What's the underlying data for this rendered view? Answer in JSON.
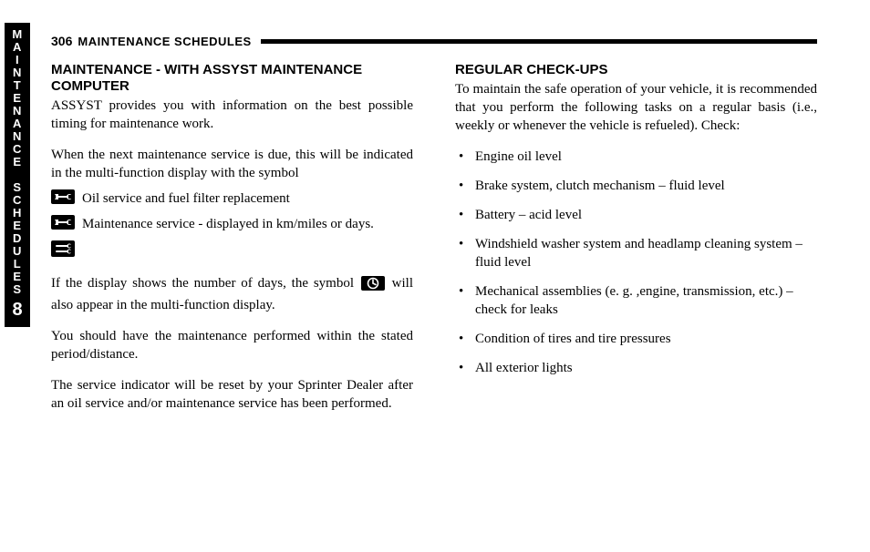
{
  "tab": {
    "line1": "MAINTENANCE",
    "line2": "SCHEDULES",
    "chapter": "8",
    "bg": "#000000",
    "fg": "#ffffff"
  },
  "header": {
    "page_number": "306",
    "running_head": "MAINTENANCE SCHEDULES"
  },
  "left": {
    "heading": "MAINTENANCE - WITH ASSYST MAINTENANCE COMPUTER",
    "p1": "ASSYST provides you with information on the best possible timing for maintenance work.",
    "p2": "When the next maintenance service is due, this will be indicated in the multi-function display with the symbol",
    "icon_lines": [
      {
        "icon": "single-wrench",
        "text": "Oil service and fuel filter replacement"
      },
      {
        "icon": "single-wrench",
        "text": "Maintenance service - displayed in km/miles or days."
      }
    ],
    "p3_pre": "If the display shows the number of days, the symbol ",
    "p3_post": " will also appear in the multi-function display.",
    "p4": "You should have the maintenance performed within the stated period/distance.",
    "p5": "The service indicator will be reset by your Sprinter Dealer after an oil service and/or maintenance service has been performed."
  },
  "right": {
    "heading": "REGULAR CHECK-UPS",
    "intro": "To maintain the safe operation of your vehicle, it is recommended that you perform the following tasks on a regular basis (i.e., weekly or whenever the vehicle is refueled). Check:",
    "items": [
      "Engine oil level",
      "Brake system, clutch mechanism – fluid level",
      "Battery – acid level",
      "Windshield washer system and headlamp cleaning system – fluid level",
      "Mechanical assemblies (e. g. ,engine, transmission, etc.) – check for leaks",
      "Condition of tires and tire pressures",
      "All exterior lights"
    ]
  },
  "icons": {
    "wrench_bg": "#000000",
    "wrench_fg": "#ffffff",
    "clock_bg": "#000000",
    "clock_fg": "#ffffff"
  }
}
